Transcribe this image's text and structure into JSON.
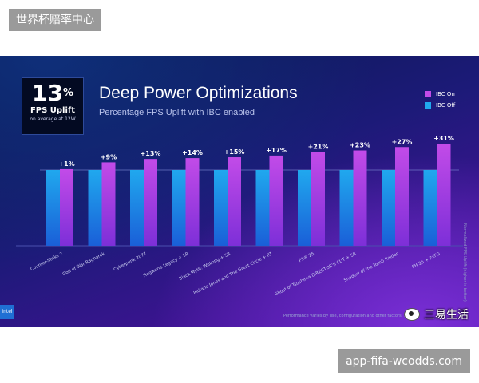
{
  "overlay": {
    "top_label": "世界杯赔率中心",
    "bottom_label": "app-fifa-wcodds.com",
    "watermark": "三易生活"
  },
  "badge": {
    "big": "13",
    "pct": "%",
    "mid": "FPS Uplift",
    "small": "on average at 12W"
  },
  "slide": {
    "logo": "intel",
    "side_note": "Normalized FPS Uplift (higher is better)",
    "footnote": "Performance varies by use, configuration and other factors. See"
  },
  "colors": {
    "ibc_on": "#c24be8",
    "ibc_off": "#20a8ee"
  },
  "chart_data": {
    "type": "bar",
    "title": "Deep Power Optimizations",
    "subtitle": "Percentage FPS Uplift with IBC enabled",
    "categories": [
      "Counter-Strike 2",
      "God of War Ragnarok",
      "Cyberpunk 2077",
      "Hogwarts Legacy + SR",
      "Black Myth: Wukong + SR",
      "Indiana Jones and The Great Circle + RT",
      "F1® 25",
      "Ghost of Tsushima DIRECTOR'S CUT + SR",
      "Shadow of the Tomb Raider",
      "FH 25 + 2xFG"
    ],
    "series": [
      {
        "name": "IBC On",
        "values": [
          101,
          109,
          113,
          114,
          115,
          117,
          121,
          123,
          127,
          131
        ]
      },
      {
        "name": "IBC Off",
        "values": [
          100,
          100,
          100,
          100,
          100,
          100,
          100,
          100,
          100,
          100
        ]
      }
    ],
    "data_labels": [
      "+1%",
      "+9%",
      "+13%",
      "+14%",
      "+15%",
      "+17%",
      "+21%",
      "+23%",
      "+27%",
      "+31%"
    ],
    "ylim": [
      0,
      140
    ],
    "grid": false,
    "legend": "top-right"
  }
}
